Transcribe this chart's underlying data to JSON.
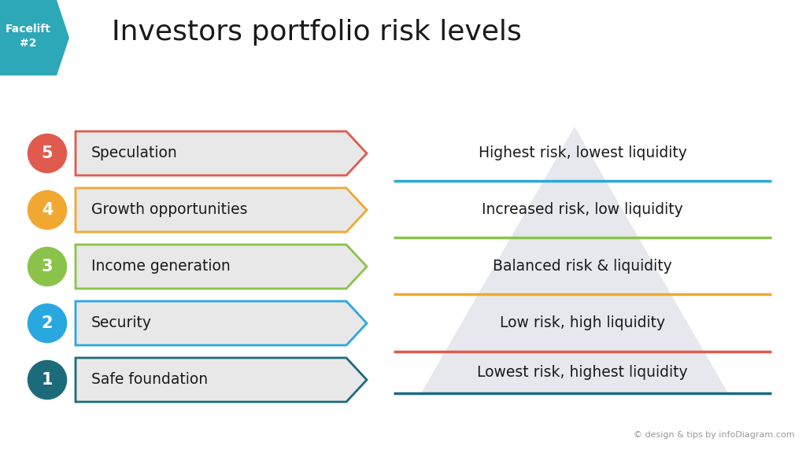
{
  "title": "Investors portfolio risk levels",
  "title_fontsize": 26,
  "bg_color": "#ffffff",
  "badge_label": "Facelift\n#2",
  "badge_color": "#2da8b8",
  "badge_text_color": "#ffffff",
  "left_items": [
    {
      "num": "5",
      "label": "Speculation",
      "circle_color": "#e05a4e",
      "arrow_color": "#e05a4e"
    },
    {
      "num": "4",
      "label": "Growth opportunities",
      "circle_color": "#f0a830",
      "arrow_color": "#f0a830"
    },
    {
      "num": "3",
      "label": "Income generation",
      "circle_color": "#8bc34a",
      "arrow_color": "#8bc34a"
    },
    {
      "num": "2",
      "label": "Security",
      "circle_color": "#29a8e0",
      "arrow_color": "#29a8e0"
    },
    {
      "num": "1",
      "label": "Safe foundation",
      "circle_color": "#1b6b7b",
      "arrow_color": "#1b6b7b"
    }
  ],
  "right_items": [
    {
      "label": "Highest risk, lowest liquidity",
      "line_color": "#e05a4e"
    },
    {
      "label": "Increased risk, low liquidity",
      "line_color": "#f0a830"
    },
    {
      "label": "Balanced risk & liquidity",
      "line_color": "#8bc34a"
    },
    {
      "label": "Low risk, high liquidity",
      "line_color": "#29a8e0"
    },
    {
      "label": "Lowest risk, highest liquidity",
      "line_color": "#1b6b7b"
    }
  ],
  "copyright": "© design & tips by infoDiagram.com",
  "arrow_fill": "#e8e8e8",
  "triangle_color": "#c8cdd8"
}
